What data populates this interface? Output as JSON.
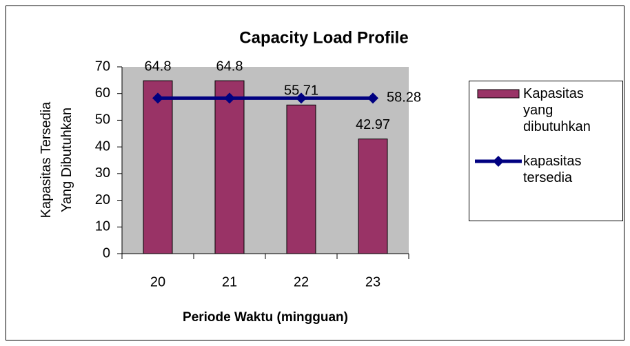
{
  "chart_data": {
    "type": "bar",
    "title": "Capacity Load Profile",
    "x_label": "Periode Waktu (mingguan)",
    "y_label": "Kapasitas Tersedia Yang Dibutuhkan",
    "categories": [
      "20",
      "21",
      "22",
      "23"
    ],
    "series": [
      {
        "name": "Kapasitas yang dibutuhkan",
        "type": "bar",
        "color": "#993366",
        "values": [
          64.8,
          64.8,
          55.71,
          42.97
        ],
        "data_labels": [
          true,
          true,
          true,
          true
        ]
      },
      {
        "name": "kapasitas tersedia",
        "type": "line",
        "color": "#000080",
        "values": [
          58.28,
          58.28,
          58.28,
          58.28
        ],
        "data_labels": [
          false,
          false,
          false,
          true
        ]
      }
    ],
    "ylim": [
      0,
      70
    ],
    "yticks": [
      0,
      10,
      20,
      30,
      40,
      50,
      60,
      70
    ],
    "grid": false,
    "plot_background": "#c0c0c0",
    "legend": "right"
  }
}
